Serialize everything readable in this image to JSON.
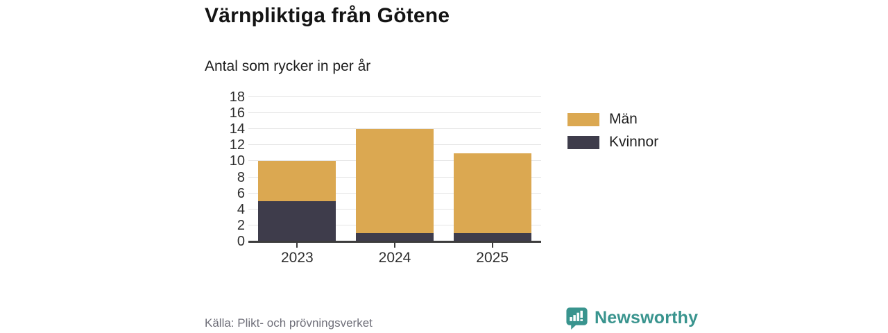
{
  "chart_data": {
    "type": "bar",
    "stacked": true,
    "title": "Värnpliktiga från Götene",
    "subtitle": "Antal som rycker in per år",
    "categories": [
      "2023",
      "2024",
      "2025"
    ],
    "series": [
      {
        "name": "Män",
        "color": "#DBA851",
        "values": [
          5,
          13,
          10
        ]
      },
      {
        "name": "Kvinnor",
        "color": "#3E3C4B",
        "values": [
          5,
          1,
          1
        ]
      }
    ],
    "stack_order_bottom_to_top": [
      "Kvinnor",
      "Män"
    ],
    "totals": [
      10,
      14,
      11
    ],
    "ylim": [
      0,
      18
    ],
    "ytick_step": 2,
    "grid": true,
    "legend_position": "right"
  },
  "footer": {
    "source": "Källa: Plikt- och prövningsverket",
    "brand": "Newsworthy",
    "brand_color": "#39948E"
  },
  "colors": {
    "background": "#ffffff",
    "gridline": "#e4e4e4",
    "axis": "#3c3c3c",
    "text": "#1e1e1e",
    "muted_text": "#70707a"
  }
}
